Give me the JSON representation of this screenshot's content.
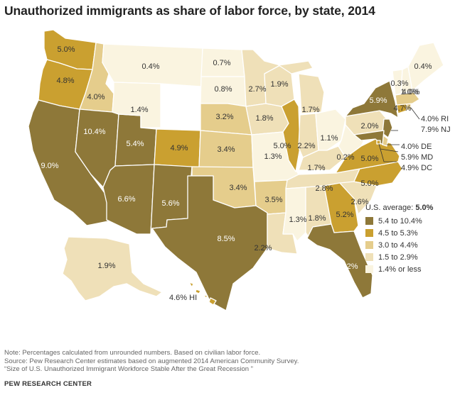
{
  "title": "Unauthorized immigrants as share of labor force, by state, 2014",
  "colors": {
    "cat1": "#8e7839",
    "cat2": "#caa030",
    "cat3": "#e5cd8c",
    "cat4": "#efe0b8",
    "cat5": "#faf4e0"
  },
  "states": [
    {
      "id": "WA",
      "value": "5.0%",
      "category": 2
    },
    {
      "id": "OR",
      "value": "4.8%",
      "category": 2
    },
    {
      "id": "CA",
      "value": "9.0%",
      "category": 1
    },
    {
      "id": "ID",
      "value": "4.0%",
      "category": 3
    },
    {
      "id": "NV",
      "value": "10.4%",
      "category": 1
    },
    {
      "id": "UT",
      "value": "5.4%",
      "category": 1
    },
    {
      "id": "AZ",
      "value": "6.6%",
      "category": 1
    },
    {
      "id": "MT",
      "value": "0.4%",
      "category": 5
    },
    {
      "id": "WY",
      "value": "1.4%",
      "category": 5
    },
    {
      "id": "CO",
      "value": "4.9%",
      "category": 2
    },
    {
      "id": "NM",
      "value": "5.6%",
      "category": 1
    },
    {
      "id": "ND",
      "value": "0.7%",
      "category": 5
    },
    {
      "id": "SD",
      "value": "0.8%",
      "category": 5
    },
    {
      "id": "NE",
      "value": "3.2%",
      "category": 3
    },
    {
      "id": "KS",
      "value": "3.4%",
      "category": 3
    },
    {
      "id": "OK",
      "value": "3.4%",
      "category": 3
    },
    {
      "id": "TX",
      "value": "8.5%",
      "category": 1
    },
    {
      "id": "MN",
      "value": "2.7%",
      "category": 4
    },
    {
      "id": "IA",
      "value": "1.8%",
      "category": 4
    },
    {
      "id": "MO",
      "value": "1.3%",
      "category": 5
    },
    {
      "id": "AR",
      "value": "3.5%",
      "category": 3
    },
    {
      "id": "LA",
      "value": "2.2%",
      "category": 4
    },
    {
      "id": "WI",
      "value": "1.9%",
      "category": 4
    },
    {
      "id": "IL",
      "value": "5.0%",
      "category": 2
    },
    {
      "id": "MI",
      "value": "1.7%",
      "category": 4
    },
    {
      "id": "IN",
      "value": "2.2%",
      "category": 4
    },
    {
      "id": "OH",
      "value": "1.1%",
      "category": 5
    },
    {
      "id": "KY",
      "value": "1.7%",
      "category": 4
    },
    {
      "id": "TN",
      "value": "2.8%",
      "category": 4
    },
    {
      "id": "MS",
      "value": "1.3%",
      "category": 5
    },
    {
      "id": "AL",
      "value": "1.8%",
      "category": 4
    },
    {
      "id": "GA",
      "value": "5.2%",
      "category": 2
    },
    {
      "id": "FL",
      "value": "6.2%",
      "category": 1
    },
    {
      "id": "SC",
      "value": "2.6%",
      "category": 4
    },
    {
      "id": "NC",
      "value": "5.0%",
      "category": 2
    },
    {
      "id": "VA",
      "value": "5.0%",
      "category": 2
    },
    {
      "id": "WV",
      "value": "0.2%",
      "category": 5
    },
    {
      "id": "PA",
      "value": "2.0%",
      "category": 4
    },
    {
      "id": "NY",
      "value": "5.9%",
      "category": 1
    },
    {
      "id": "NJ",
      "value": "7.9% NJ",
      "category": 1
    },
    {
      "id": "CT",
      "value": "4.7%",
      "category": 2
    },
    {
      "id": "RI",
      "value": "4.0% RI",
      "category": 3
    },
    {
      "id": "MA",
      "value": "4.0%",
      "category": 3
    },
    {
      "id": "VT",
      "value": "0.3%",
      "category": 5
    },
    {
      "id": "NH",
      "value": "1.0%",
      "category": 5
    },
    {
      "id": "ME",
      "value": "0.4%",
      "category": 5
    },
    {
      "id": "DE",
      "value": "4.0% DE",
      "category": 3
    },
    {
      "id": "MD",
      "value": "5.9% MD",
      "category": 1
    },
    {
      "id": "DC",
      "value": "4.9% DC",
      "category": 2
    },
    {
      "id": "AK",
      "value": "1.9%",
      "category": 4
    },
    {
      "id": "HI",
      "value": "4.6% HI",
      "category": 2
    }
  ],
  "legend": {
    "title_prefix": "U.S. average: ",
    "title_value": "5.0%",
    "items": [
      {
        "label": "5.4 to 10.4%",
        "category": 1
      },
      {
        "label": "4.5 to 5.3%",
        "category": 2
      },
      {
        "label": "3.0 to 4.4%",
        "category": 3
      },
      {
        "label": "1.5 to 2.9%",
        "category": 4
      },
      {
        "label": "1.4% or less",
        "category": 5
      }
    ]
  },
  "notes": {
    "note": "Note: Percentages calculated from unrounded numbers. Based on civilian labor force.",
    "source": "Source: Pew Research Center estimates based on augmented 2014 American Community Survey.",
    "report": "“Size of U.S. Unauthorized Immigrant Workforce Stable After the Great Recession ”"
  },
  "brand": "PEW RESEARCH CENTER"
}
